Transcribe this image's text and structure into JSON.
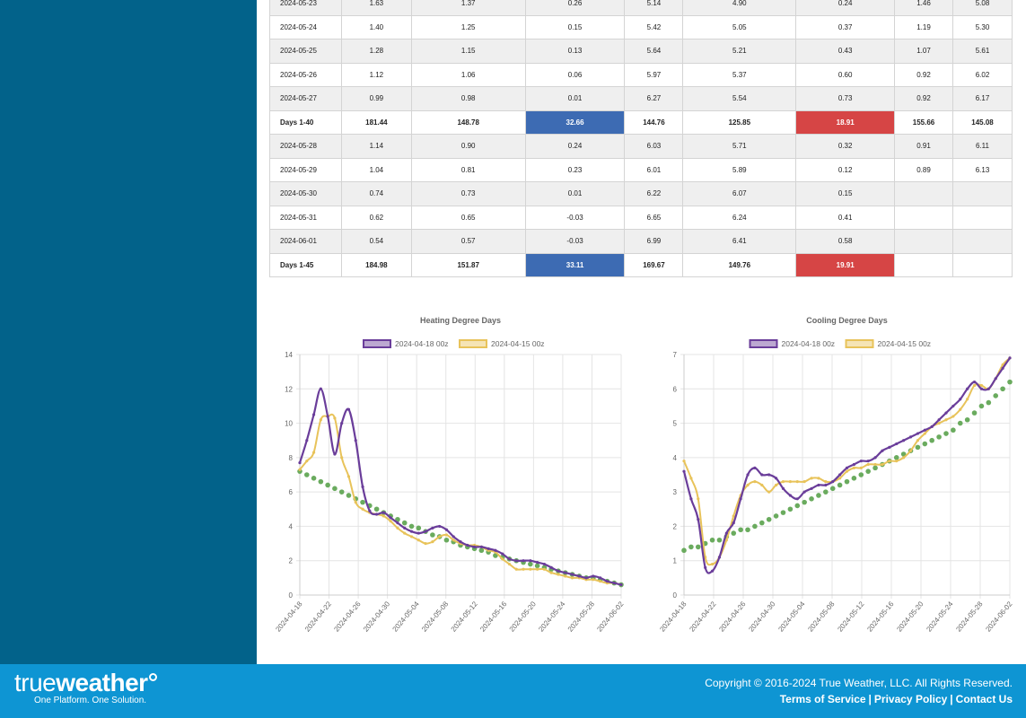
{
  "table": {
    "rows": [
      {
        "type": "data",
        "alt": true,
        "cells": [
          "2024-05-23",
          "1.63",
          "1.37",
          "0.26",
          "5.14",
          "4.90",
          "0.24",
          "1.46",
          "5.08"
        ]
      },
      {
        "type": "data",
        "alt": false,
        "cells": [
          "2024-05-24",
          "1.40",
          "1.25",
          "0.15",
          "5.42",
          "5.05",
          "0.37",
          "1.19",
          "5.30"
        ]
      },
      {
        "type": "data",
        "alt": true,
        "cells": [
          "2024-05-25",
          "1.28",
          "1.15",
          "0.13",
          "5.64",
          "5.21",
          "0.43",
          "1.07",
          "5.61"
        ]
      },
      {
        "type": "data",
        "alt": false,
        "cells": [
          "2024-05-26",
          "1.12",
          "1.06",
          "0.06",
          "5.97",
          "5.37",
          "0.60",
          "0.92",
          "6.02"
        ]
      },
      {
        "type": "data",
        "alt": true,
        "cells": [
          "2024-05-27",
          "0.99",
          "0.98",
          "0.01",
          "6.27",
          "5.54",
          "0.73",
          "0.92",
          "6.17"
        ]
      },
      {
        "type": "total",
        "alt": false,
        "cells": [
          "Days 1-40",
          "181.44",
          "148.78",
          "32.66",
          "144.76",
          "125.85",
          "18.91",
          "155.66",
          "145.08"
        ]
      },
      {
        "type": "data",
        "alt": true,
        "cells": [
          "2024-05-28",
          "1.14",
          "0.90",
          "0.24",
          "6.03",
          "5.71",
          "0.32",
          "0.91",
          "6.11"
        ]
      },
      {
        "type": "data",
        "alt": false,
        "cells": [
          "2024-05-29",
          "1.04",
          "0.81",
          "0.23",
          "6.01",
          "5.89",
          "0.12",
          "0.89",
          "6.13"
        ]
      },
      {
        "type": "data",
        "alt": true,
        "cells": [
          "2024-05-30",
          "0.74",
          "0.73",
          "0.01",
          "6.22",
          "6.07",
          "0.15",
          "",
          ""
        ]
      },
      {
        "type": "data",
        "alt": false,
        "cells": [
          "2024-05-31",
          "0.62",
          "0.65",
          "-0.03",
          "6.65",
          "6.24",
          "0.41",
          "",
          ""
        ]
      },
      {
        "type": "data",
        "alt": true,
        "cells": [
          "2024-06-01",
          "0.54",
          "0.57",
          "-0.03",
          "6.99",
          "6.41",
          "0.58",
          "",
          ""
        ]
      },
      {
        "type": "total",
        "alt": false,
        "cells": [
          "Days 1-45",
          "184.98",
          "151.87",
          "33.11",
          "169.67",
          "149.76",
          "19.91",
          "",
          ""
        ]
      }
    ],
    "colors": {
      "blue": "#3d6bb3",
      "red": "#d64545"
    }
  },
  "chart_data": [
    {
      "type": "line",
      "title": "Heating Degree Days",
      "ylim": [
        0,
        14
      ],
      "yticks": [
        "0",
        "2",
        "4",
        "6",
        "8",
        "10",
        "12",
        "14"
      ],
      "xticks": [
        "2024-04-18",
        "2024-04-22",
        "2024-04-26",
        "2024-04-30",
        "2024-05-04",
        "2024-05-08",
        "2024-05-12",
        "2024-05-16",
        "2024-05-20",
        "2024-05-24",
        "2024-05-28",
        "2024-06-02"
      ],
      "grid": true,
      "legend": "top",
      "series": [
        {
          "name": "2024-04-18 00z",
          "color": "#6a3d9a",
          "values": [
            7.7,
            9.0,
            10.5,
            12.0,
            10.4,
            8.2,
            10.0,
            10.8,
            9.0,
            6.3,
            4.9,
            4.7,
            4.8,
            4.5,
            4.2,
            3.9,
            3.7,
            3.6,
            3.7,
            3.9,
            4.0,
            3.8,
            3.4,
            3.1,
            2.9,
            2.8,
            2.8,
            2.7,
            2.6,
            2.4,
            2.1,
            2.0,
            2.0,
            2.0,
            1.9,
            1.8,
            1.6,
            1.4,
            1.3,
            1.2,
            1.1,
            1.0,
            1.1,
            1.0,
            0.8,
            0.7,
            0.6
          ]
        },
        {
          "name": "2024-04-15 00z",
          "color": "#e8c35a",
          "values": [
            7.3,
            7.8,
            8.3,
            10.2,
            10.4,
            10.3,
            8.0,
            6.9,
            5.4,
            5.0,
            4.8,
            4.7,
            4.6,
            4.3,
            3.9,
            3.6,
            3.4,
            3.2,
            3.0,
            3.1,
            3.4,
            3.5,
            3.2,
            3.0,
            2.9,
            2.9,
            2.8,
            2.6,
            2.5,
            2.1,
            1.8,
            1.5,
            1.5,
            1.5,
            1.5,
            1.5,
            1.3,
            1.2,
            1.1,
            1.0,
            1.0,
            0.9,
            0.9,
            0.8,
            0.7,
            0.7,
            0.6
          ]
        },
        {
          "name": "",
          "color": "#6aab5e",
          "values": [
            7.2,
            7.0,
            6.8,
            6.6,
            6.4,
            6.2,
            6.0,
            5.8,
            5.6,
            5.4,
            5.2,
            5.0,
            4.8,
            4.6,
            4.4,
            4.2,
            4.0,
            3.9,
            3.7,
            3.5,
            3.4,
            3.2,
            3.1,
            2.9,
            2.8,
            2.7,
            2.6,
            2.5,
            2.3,
            2.2,
            2.1,
            2.0,
            1.9,
            1.8,
            1.7,
            1.6,
            1.5,
            1.4,
            1.3,
            1.2,
            1.1,
            1.0,
            1.0,
            0.9,
            0.8,
            0.7,
            0.6
          ]
        }
      ]
    },
    {
      "type": "line",
      "title": "Cooling Degree Days",
      "ylim": [
        0,
        7
      ],
      "yticks": [
        "0",
        "1",
        "2",
        "3",
        "4",
        "5",
        "6",
        "7"
      ],
      "xticks": [
        "2024-04-18",
        "2024-04-22",
        "2024-04-26",
        "2024-04-30",
        "2024-05-04",
        "2024-05-08",
        "2024-05-12",
        "2024-05-16",
        "2024-05-20",
        "2024-05-24",
        "2024-05-28",
        "2024-06-02"
      ],
      "grid": true,
      "legend": "top",
      "series": [
        {
          "name": "2024-04-18 00z",
          "color": "#6a3d9a",
          "values": [
            3.6,
            2.8,
            2.2,
            0.8,
            0.7,
            1.1,
            1.8,
            2.1,
            2.8,
            3.5,
            3.7,
            3.5,
            3.5,
            3.4,
            3.1,
            2.9,
            2.8,
            3.0,
            3.1,
            3.2,
            3.2,
            3.3,
            3.5,
            3.7,
            3.8,
            3.9,
            3.9,
            4.0,
            4.2,
            4.3,
            4.4,
            4.5,
            4.6,
            4.7,
            4.8,
            4.9,
            5.1,
            5.3,
            5.5,
            5.7,
            6.0,
            6.2,
            6.0,
            6.0,
            6.3,
            6.6,
            6.9
          ]
        },
        {
          "name": "2024-04-15 00z",
          "color": "#e8c35a",
          "values": [
            3.9,
            3.4,
            2.8,
            1.1,
            0.9,
            1.1,
            1.6,
            2.3,
            2.9,
            3.2,
            3.3,
            3.2,
            3.0,
            3.2,
            3.3,
            3.3,
            3.3,
            3.3,
            3.4,
            3.4,
            3.3,
            3.3,
            3.4,
            3.6,
            3.7,
            3.7,
            3.8,
            3.8,
            3.8,
            3.9,
            3.9,
            4.0,
            4.2,
            4.5,
            4.7,
            4.9,
            5.0,
            5.1,
            5.2,
            5.4,
            5.7,
            6.1,
            6.1,
            6.0,
            6.3,
            6.7,
            6.9
          ]
        },
        {
          "name": "",
          "color": "#6aab5e",
          "values": [
            1.3,
            1.4,
            1.4,
            1.5,
            1.6,
            1.6,
            1.7,
            1.8,
            1.9,
            1.9,
            2.0,
            2.1,
            2.2,
            2.3,
            2.4,
            2.5,
            2.6,
            2.7,
            2.8,
            2.9,
            3.0,
            3.1,
            3.2,
            3.3,
            3.4,
            3.5,
            3.6,
            3.7,
            3.8,
            3.9,
            4.0,
            4.1,
            4.2,
            4.3,
            4.4,
            4.5,
            4.6,
            4.7,
            4.8,
            5.0,
            5.1,
            5.3,
            5.5,
            5.6,
            5.8,
            6.0,
            6.2
          ]
        }
      ]
    }
  ],
  "footer": {
    "logo_true": "true",
    "logo_weather": "weather",
    "logo_tag": "One Platform. One Solution.",
    "copyright": "Copyright © 2016-2024 True Weather, LLC. All Rights Reserved.",
    "terms": "Terms of Service",
    "privacy": "Privacy Policy",
    "contact": "Contact Us",
    "sep": "|"
  }
}
